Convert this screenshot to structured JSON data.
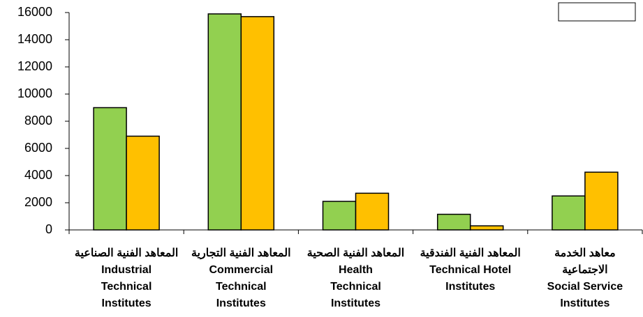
{
  "chart_data": {
    "type": "bar",
    "categories": [
      [
        "المعاهد الفنية الصناعية",
        "Industrial",
        "Technical",
        "Institutes"
      ],
      [
        "المعاهد الفنية التجارية",
        "Commercial",
        "Technical",
        "Institutes"
      ],
      [
        "المعاهد الفنية الصحية",
        "Health",
        "Technical",
        "Institutes"
      ],
      [
        "المعاهد الفنية الفندقية",
        "Technical Hotel",
        "Institutes"
      ],
      [
        "معاهد الخدمة",
        "الاجتماعية",
        "Social Service",
        "Institutes"
      ]
    ],
    "series": [
      {
        "color": "#92d050",
        "values": [
          9000,
          15900,
          2100,
          1150,
          2500
        ]
      },
      {
        "color": "#ffc000",
        "values": [
          6900,
          15700,
          2700,
          300,
          4250
        ]
      }
    ],
    "ylim": [
      0,
      16000
    ],
    "yticks": [
      0,
      2000,
      4000,
      6000,
      8000,
      10000,
      12000,
      14000,
      16000
    ]
  }
}
